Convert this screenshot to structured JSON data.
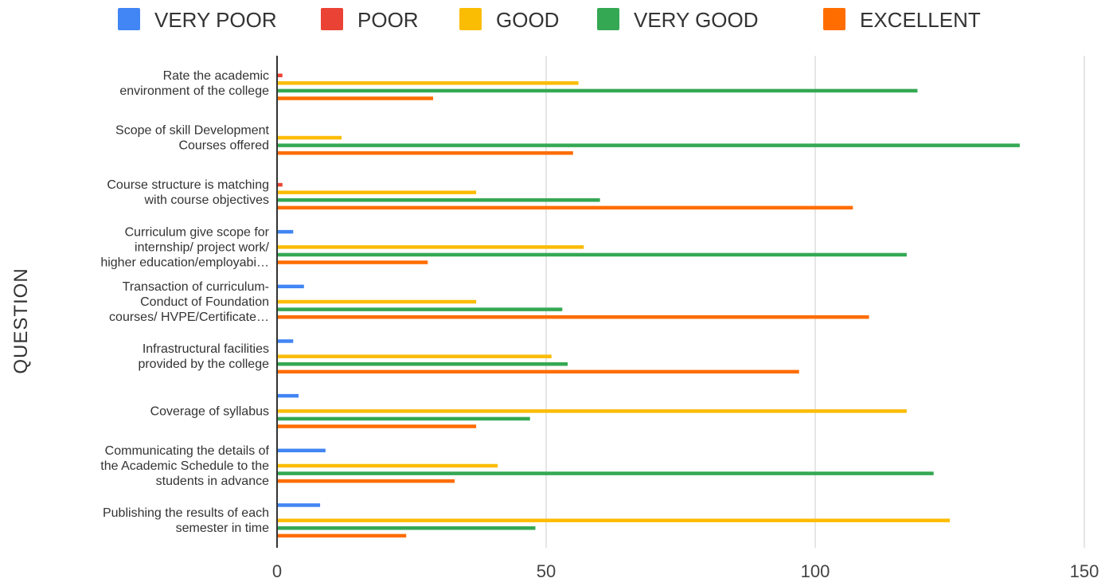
{
  "chart_data": {
    "type": "bar",
    "orientation": "horizontal",
    "ylabel": "QUESTION",
    "xlim": [
      0,
      150
    ],
    "x_ticks": [
      0,
      50,
      100,
      150
    ],
    "grid": true,
    "legend_position": "top",
    "categories": [
      [
        "Rate the academic",
        "environment of the college"
      ],
      [
        "Scope of skill Development",
        "Courses offered"
      ],
      [
        "Course structure is matching",
        "with course objectives"
      ],
      [
        "Curriculum give scope for",
        "internship/ project work/",
        "higher education/employabi…"
      ],
      [
        "Transaction of curriculum-",
        "Conduct of Foundation",
        "courses/ HVPE/Certificate…"
      ],
      [
        "Infrastructural facilities",
        "provided by the college"
      ],
      [
        "Coverage of syllabus"
      ],
      [
        "Communicating the details of",
        "the Academic Schedule to the",
        "students in advance"
      ],
      [
        "Publishing the results of each",
        "semester in time"
      ]
    ],
    "series": [
      {
        "name": "VERY POOR",
        "color": "#4285F4",
        "values": [
          0,
          0,
          0,
          3,
          5,
          3,
          4,
          9,
          8
        ]
      },
      {
        "name": "POOR",
        "color": "#EA4335",
        "values": [
          1,
          0,
          1,
          0,
          0,
          0,
          0,
          0,
          0
        ]
      },
      {
        "name": "GOOD",
        "color": "#FBBC04",
        "values": [
          56,
          12,
          37,
          57,
          37,
          51,
          117,
          41,
          125
        ]
      },
      {
        "name": "VERY GOOD",
        "color": "#34A853",
        "values": [
          119,
          138,
          60,
          117,
          53,
          54,
          47,
          122,
          48
        ]
      },
      {
        "name": "EXCELLENT",
        "color": "#FF6D01",
        "values": [
          29,
          55,
          107,
          28,
          110,
          97,
          37,
          33,
          24
        ]
      }
    ]
  }
}
